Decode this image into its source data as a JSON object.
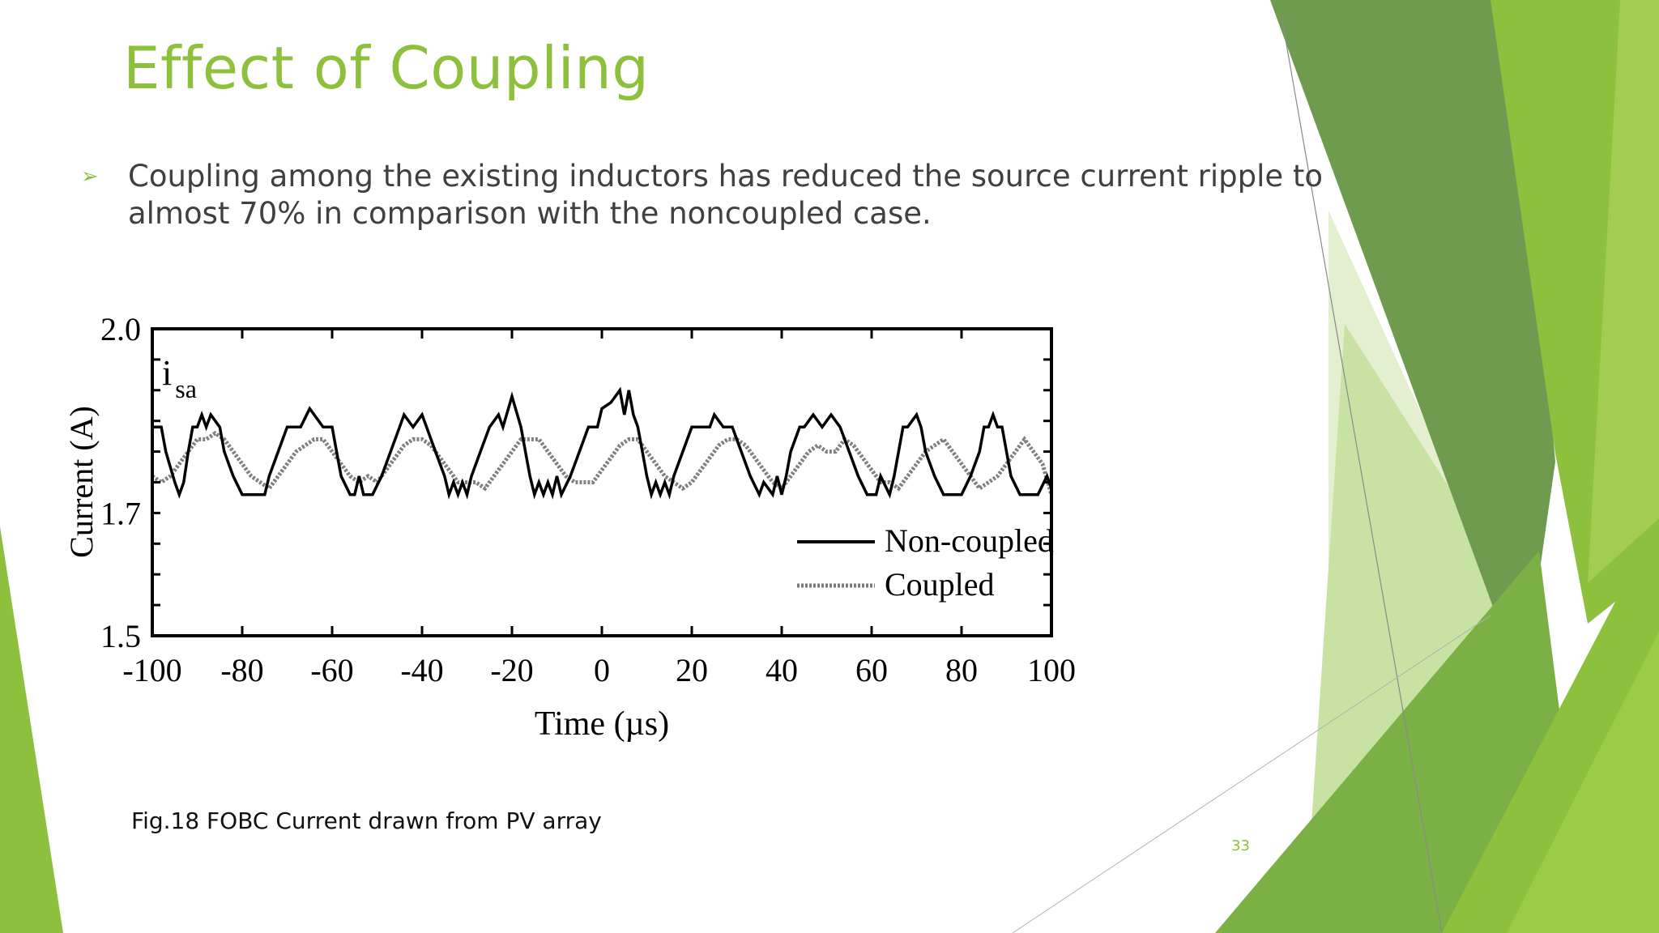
{
  "slide": {
    "title": "Effect of Coupling",
    "bullet_marker": "➢",
    "bullet_text": "Coupling among the existing inductors has reduced the source current ripple to almost 70% in comparison with the noncoupled case.",
    "caption": "Fig.18 FOBC Current drawn from PV array",
    "page_number": "33",
    "accent_color": "#8dc03c"
  },
  "chart_data": {
    "type": "line",
    "title": "",
    "xlabel": "Time (µs)",
    "ylabel": "Current (A)",
    "annotation_main": "i",
    "annotation_sub": "sa",
    "xlim": [
      -100,
      100
    ],
    "ylim": [
      1.5,
      2.0
    ],
    "x_ticks": [
      -100,
      -80,
      -60,
      -40,
      -20,
      0,
      20,
      40,
      60,
      80,
      100
    ],
    "x_tick_labels": [
      "-100",
      "-80",
      "-60",
      "-40",
      "-20",
      "0",
      "20",
      "40",
      "60",
      "80",
      "100"
    ],
    "y_tick_labels": [
      {
        "value": 2.0,
        "label": "2.0"
      },
      {
        "value": 1.7,
        "label": "1.7"
      },
      {
        "value": 1.5,
        "label": "1.5"
      }
    ],
    "legend_position": "lower-right",
    "series": [
      {
        "name": "Non-coupled",
        "style": "solid",
        "color": "#000000",
        "x": [
          -100,
          -98,
          -97,
          -95,
          -94,
          -93,
          -92,
          -91,
          -90,
          -89,
          -88,
          -87,
          -85,
          -84,
          -82,
          -80,
          -79,
          -77,
          -75,
          -74,
          -72,
          -70,
          -69,
          -67,
          -65,
          -62,
          -60,
          -59,
          -58,
          -56,
          -55,
          -54,
          -53,
          -51,
          -49,
          -47,
          -45,
          -44,
          -42,
          -40,
          -39,
          -37,
          -35,
          -34,
          -33,
          -32,
          -31,
          -30,
          -29,
          -27,
          -25,
          -23,
          -22,
          -20,
          -18,
          -17,
          -16,
          -15,
          -14,
          -13,
          -12,
          -11,
          -10,
          -9,
          -7,
          -5,
          -3,
          -1,
          0,
          2,
          4,
          5,
          6,
          7,
          8,
          9,
          10,
          11,
          12,
          13,
          14,
          15,
          16,
          18,
          20,
          22,
          24,
          25,
          27,
          29,
          31,
          33,
          35,
          36,
          38,
          39,
          40,
          41,
          42,
          44,
          45,
          47,
          49,
          51,
          53,
          55,
          57,
          59,
          61,
          62,
          64,
          65,
          66,
          67,
          68,
          70,
          71,
          72,
          74,
          76,
          78,
          80,
          82,
          84,
          85,
          86,
          87,
          88,
          89,
          90,
          91,
          93,
          95,
          97,
          99,
          100
        ],
        "y": [
          1.84,
          1.84,
          1.8,
          1.75,
          1.73,
          1.75,
          1.8,
          1.84,
          1.84,
          1.86,
          1.84,
          1.86,
          1.84,
          1.8,
          1.76,
          1.73,
          1.73,
          1.73,
          1.73,
          1.76,
          1.8,
          1.84,
          1.84,
          1.84,
          1.87,
          1.84,
          1.84,
          1.8,
          1.76,
          1.73,
          1.73,
          1.76,
          1.73,
          1.73,
          1.76,
          1.8,
          1.84,
          1.86,
          1.84,
          1.86,
          1.84,
          1.8,
          1.76,
          1.73,
          1.75,
          1.73,
          1.75,
          1.73,
          1.76,
          1.8,
          1.84,
          1.86,
          1.84,
          1.89,
          1.84,
          1.8,
          1.76,
          1.73,
          1.75,
          1.73,
          1.75,
          1.73,
          1.76,
          1.73,
          1.76,
          1.8,
          1.84,
          1.84,
          1.87,
          1.88,
          1.9,
          1.86,
          1.9,
          1.86,
          1.84,
          1.8,
          1.76,
          1.73,
          1.75,
          1.73,
          1.75,
          1.73,
          1.76,
          1.8,
          1.84,
          1.84,
          1.84,
          1.86,
          1.84,
          1.84,
          1.8,
          1.76,
          1.73,
          1.75,
          1.73,
          1.76,
          1.73,
          1.76,
          1.8,
          1.84,
          1.84,
          1.86,
          1.84,
          1.86,
          1.84,
          1.8,
          1.76,
          1.73,
          1.73,
          1.76,
          1.73,
          1.76,
          1.8,
          1.84,
          1.84,
          1.86,
          1.84,
          1.8,
          1.76,
          1.73,
          1.73,
          1.73,
          1.76,
          1.8,
          1.84,
          1.84,
          1.86,
          1.84,
          1.84,
          1.8,
          1.76,
          1.73,
          1.73,
          1.73,
          1.76,
          1.74
        ]
      },
      {
        "name": "Coupled",
        "style": "dotted",
        "color": "#808080",
        "x": [
          -100,
          -98,
          -96,
          -94,
          -92,
          -90,
          -88,
          -86,
          -84,
          -82,
          -80,
          -78,
          -76,
          -74,
          -72,
          -70,
          -68,
          -66,
          -64,
          -62,
          -60,
          -58,
          -56,
          -54,
          -52,
          -50,
          -48,
          -46,
          -44,
          -42,
          -40,
          -38,
          -36,
          -34,
          -32,
          -30,
          -28,
          -26,
          -24,
          -22,
          -20,
          -18,
          -16,
          -14,
          -12,
          -10,
          -8,
          -6,
          -4,
          -2,
          0,
          2,
          4,
          6,
          8,
          10,
          12,
          14,
          16,
          18,
          20,
          22,
          24,
          26,
          28,
          30,
          32,
          34,
          36,
          38,
          40,
          42,
          44,
          46,
          48,
          50,
          52,
          54,
          56,
          58,
          60,
          62,
          64,
          66,
          68,
          70,
          72,
          74,
          76,
          78,
          80,
          82,
          84,
          86,
          88,
          90,
          92,
          94,
          96,
          98,
          100
        ],
        "y": [
          1.76,
          1.75,
          1.76,
          1.78,
          1.8,
          1.82,
          1.82,
          1.83,
          1.82,
          1.8,
          1.78,
          1.76,
          1.75,
          1.74,
          1.76,
          1.78,
          1.8,
          1.81,
          1.82,
          1.82,
          1.8,
          1.78,
          1.76,
          1.75,
          1.76,
          1.75,
          1.77,
          1.79,
          1.81,
          1.82,
          1.82,
          1.81,
          1.79,
          1.77,
          1.75,
          1.75,
          1.75,
          1.74,
          1.76,
          1.78,
          1.8,
          1.82,
          1.82,
          1.82,
          1.8,
          1.78,
          1.76,
          1.75,
          1.75,
          1.75,
          1.77,
          1.79,
          1.81,
          1.82,
          1.82,
          1.8,
          1.78,
          1.76,
          1.75,
          1.74,
          1.75,
          1.77,
          1.79,
          1.81,
          1.82,
          1.82,
          1.81,
          1.79,
          1.77,
          1.75,
          1.74,
          1.76,
          1.78,
          1.8,
          1.81,
          1.8,
          1.8,
          1.82,
          1.81,
          1.79,
          1.77,
          1.75,
          1.75,
          1.74,
          1.76,
          1.78,
          1.8,
          1.81,
          1.82,
          1.8,
          1.78,
          1.76,
          1.74,
          1.75,
          1.76,
          1.78,
          1.8,
          1.82,
          1.8,
          1.78,
          1.73
        ]
      }
    ]
  }
}
